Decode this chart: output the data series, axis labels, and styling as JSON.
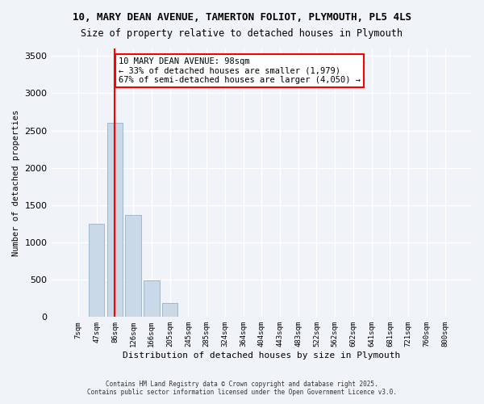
{
  "title_line1": "10, MARY DEAN AVENUE, TAMERTON FOLIOT, PLYMOUTH, PL5 4LS",
  "title_line2": "Size of property relative to detached houses in Plymouth",
  "xlabel": "Distribution of detached houses by size in Plymouth",
  "ylabel": "Number of detached properties",
  "bar_labels": [
    "7sqm",
    "47sqm",
    "86sqm",
    "126sqm",
    "166sqm",
    "205sqm",
    "245sqm",
    "285sqm",
    "324sqm",
    "364sqm",
    "404sqm",
    "443sqm",
    "483sqm",
    "522sqm",
    "562sqm",
    "602sqm",
    "641sqm",
    "681sqm",
    "721sqm",
    "760sqm",
    "800sqm"
  ],
  "bar_values": [
    0,
    1250,
    2600,
    1370,
    490,
    190,
    0,
    0,
    0,
    0,
    0,
    0,
    0,
    0,
    0,
    0,
    0,
    0,
    0,
    0,
    0
  ],
  "bar_color": "#c9d9e8",
  "bar_edge_color": "#a0b8cc",
  "vline_x": 2,
  "vline_color": "red",
  "annotation_text": "10 MARY DEAN AVENUE: 98sqm\n← 33% of detached houses are smaller (1,979)\n67% of semi-detached houses are larger (4,050) →",
  "annotation_box_color": "white",
  "annotation_box_edge": "red",
  "ylim": [
    0,
    3600
  ],
  "yticks": [
    0,
    500,
    1000,
    1500,
    2000,
    2500,
    3000,
    3500
  ],
  "footer_line1": "Contains HM Land Registry data © Crown copyright and database right 2025.",
  "footer_line2": "Contains public sector information licensed under the Open Government Licence v3.0.",
  "bg_color": "#f0f4f8",
  "grid_color": "#ffffff"
}
